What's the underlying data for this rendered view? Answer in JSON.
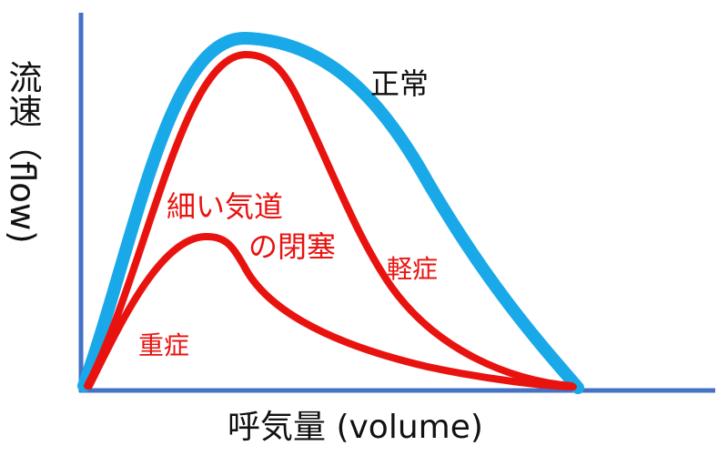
{
  "axes": {
    "y_label": "流速（flow)",
    "x_label": "呼気量 (volume)",
    "axis_color": "#4472c4"
  },
  "curves": {
    "normal": {
      "label": "正常",
      "color": "#1aa9e8",
      "label_color": "#111111"
    },
    "mild": {
      "label": "軽症",
      "color": "#e8130f"
    },
    "severe": {
      "label": "重症",
      "color": "#e8130f"
    }
  },
  "annotation": {
    "line1": "細い気道",
    "line2": "の閉塞",
    "color": "#e8130f"
  }
}
